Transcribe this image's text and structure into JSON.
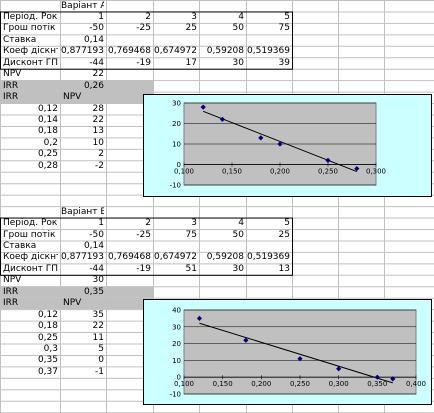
{
  "blockA": {
    "variant": "Варіант А",
    "labels": [
      "Період. Роки",
      "Грош потік",
      "Ставка",
      "Коеф діскнт.",
      "Дисконт ГП"
    ],
    "periods": [
      "1",
      "2",
      "3",
      "4",
      "5"
    ],
    "cashflow": [
      "-50",
      "-25",
      "25",
      "50",
      "75"
    ],
    "rate": "0,14",
    "coef": [
      "0,877193",
      "0,769468",
      "0,674972",
      "0,59208",
      "0,519369"
    ],
    "discount": [
      "-44",
      "-19",
      "17",
      "30",
      "39"
    ],
    "npv_label": "NPV",
    "npv_value": "22",
    "irr_label": "IRR",
    "irr_value": "0,26",
    "table_headers": [
      "IRR",
      "NPV"
    ],
    "table_irr": [
      "0,12",
      "0,14",
      "0,18",
      "0,2",
      "0,25",
      "0,28"
    ],
    "table_npv": [
      "28",
      "22",
      "13",
      "10",
      "2",
      "-2"
    ]
  },
  "blockB": {
    "variant": "Варіант Б",
    "labels": [
      "Період. Роки",
      "Грош потік",
      "Ставка",
      "Коеф діскнт.",
      "Дисконт ГП"
    ],
    "periods": [
      "1",
      "2",
      "3",
      "4",
      "5"
    ],
    "cashflow": [
      "-50",
      "-25",
      "75",
      "50",
      "25"
    ],
    "rate": "0,14",
    "coef": [
      "0,877193",
      "0,769468",
      "0,674972",
      "0,59208",
      "0,519369"
    ],
    "discount": [
      "-44",
      "-19",
      "51",
      "30",
      "13"
    ],
    "npv_label": "NPV",
    "npv_value": "30",
    "irr_label": "IRR",
    "irr_value": "0,35",
    "table_headers": [
      "IRR",
      "NPV"
    ],
    "table_irr": [
      "0,12",
      "0,18",
      "0,25",
      "0,3",
      "0,35",
      "0,37"
    ],
    "table_npv": [
      "35",
      "22",
      "11",
      "5",
      "0",
      "-1"
    ]
  },
  "colors": {
    "chart_bg": "#ccffff",
    "plot_bg": "#c0c0c0",
    "grid": "#e0e0e0",
    "highlight": "#c0c0c0",
    "marker": "#000080"
  },
  "chart_data": [
    {
      "type": "scatter",
      "x": [
        0.12,
        0.14,
        0.18,
        0.2,
        0.25,
        0.28
      ],
      "y": [
        28,
        22,
        13,
        10,
        2,
        -2
      ],
      "trendline": true,
      "xlim": [
        0.1,
        0.3
      ],
      "ylim": [
        -10,
        30
      ],
      "xticks": [
        "0,100",
        "0,150",
        "0,200",
        "0,250",
        "0,300"
      ],
      "yticks": [
        "30",
        "20",
        "10",
        "0",
        "-10"
      ],
      "grid": true
    },
    {
      "type": "scatter",
      "x": [
        0.12,
        0.18,
        0.25,
        0.3,
        0.35,
        0.37
      ],
      "y": [
        35,
        22,
        11,
        5,
        0,
        -1
      ],
      "trendline": true,
      "xlim": [
        0.1,
        0.4
      ],
      "ylim": [
        -10,
        40
      ],
      "xticks": [
        "0,100",
        "0,150",
        "0,200",
        "0,250",
        "0,300",
        "0,350",
        "0,400"
      ],
      "yticks": [
        "40",
        "30",
        "20",
        "10",
        "0",
        "-10"
      ],
      "grid": true
    }
  ]
}
